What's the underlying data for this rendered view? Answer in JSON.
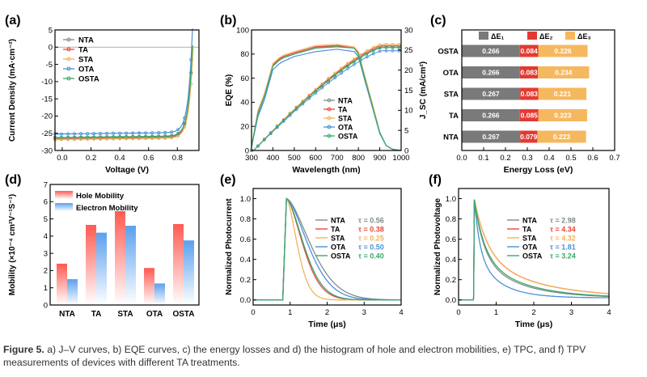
{
  "colors": {
    "NTA": "#7f8c8d",
    "TA": "#e8473b",
    "STA": "#f2b35c",
    "OTA": "#4a90d9",
    "OSTA": "#3aa76d",
    "dE1": "#7a7a7a",
    "dE2": "#e23b33",
    "dE3": "#f5b85f",
    "hole": "#ff5a52",
    "electron": "#5aa0ee"
  },
  "caption": {
    "label": "Figure 5.",
    "text": "a) J–V curves, b) EQE curves, c) the energy losses and d) the histogram of hole and electron mobilities, e) TPC, and f) TPV measurements of devices with different TA treatments."
  },
  "panels": {
    "a": {
      "label": "(a)"
    },
    "b": {
      "label": "(b)"
    },
    "c": {
      "label": "(c)"
    },
    "d": {
      "label": "(d)"
    },
    "e": {
      "label": "(e)"
    },
    "f": {
      "label": "(f)"
    }
  },
  "chart_data": [
    {
      "id": "a",
      "type": "line",
      "title": "",
      "xlabel": "Voltage (V)",
      "ylabel": "Current Density (mA·cm⁻²)",
      "xlim": [
        -0.05,
        0.95
      ],
      "ylim": [
        -30,
        5
      ],
      "xticks": [
        "0.0",
        "0.2",
        "0.4",
        "0.6",
        "0.8"
      ],
      "xtickvals": [
        0,
        0.2,
        0.4,
        0.6,
        0.8
      ],
      "yticks": [
        "5",
        "0",
        "-5",
        "-10",
        "-15",
        "-20",
        "-25",
        "-30"
      ],
      "ytickvals": [
        5,
        0,
        -5,
        -10,
        -15,
        -20,
        -25,
        -30
      ],
      "legend": [
        "NTA",
        "TA",
        "STA",
        "OTA",
        "OSTA"
      ],
      "series": [
        {
          "name": "NTA",
          "jsc": -26.3,
          "voc": 0.905
        },
        {
          "name": "TA",
          "jsc": -26.6,
          "voc": 0.905
        },
        {
          "name": "STA",
          "jsc": -26.8,
          "voc": 0.91
        },
        {
          "name": "OTA",
          "jsc": -25.2,
          "voc": 0.9
        },
        {
          "name": "OSTA",
          "jsc": -26.2,
          "voc": 0.905
        }
      ]
    },
    {
      "id": "b",
      "type": "line",
      "xlabel": "Wavelength (nm)",
      "ylabel": "EQE (%)",
      "ylabel2": "J_SC (mA/cm²)",
      "xlim": [
        300,
        1000
      ],
      "ylim": [
        0,
        100
      ],
      "y2lim": [
        0,
        30
      ],
      "xticks": [
        "300",
        "400",
        "500",
        "600",
        "700",
        "800",
        "900",
        "1000"
      ],
      "xtickvals": [
        300,
        400,
        500,
        600,
        700,
        800,
        900,
        1000
      ],
      "yticks": [
        "0",
        "20",
        "40",
        "60",
        "80",
        "100"
      ],
      "ytickvals": [
        0,
        20,
        40,
        60,
        80,
        100
      ],
      "y2ticks": [
        "0",
        "5",
        "10",
        "15",
        "20",
        "25",
        "30"
      ],
      "y2tickvals": [
        0,
        5,
        10,
        15,
        20,
        25,
        30
      ],
      "legend": [
        "NTA",
        "TA",
        "STA",
        "OTA",
        "OSTA"
      ],
      "eqe_wavelengths": [
        300,
        330,
        360,
        400,
        430,
        450,
        500,
        600,
        700,
        780,
        800,
        830,
        870,
        900,
        930,
        960,
        1000
      ],
      "series": [
        {
          "name": "NTA",
          "eqe": [
            3,
            30,
            45,
            70,
            75,
            77,
            80,
            85,
            87,
            85,
            80,
            60,
            35,
            15,
            4,
            1,
            0
          ],
          "jsc_final": 25.8
        },
        {
          "name": "TA",
          "eqe": [
            3,
            32,
            46,
            71,
            76,
            78,
            81,
            86,
            87,
            85,
            81,
            61,
            35,
            15,
            4,
            1,
            0
          ],
          "jsc_final": 26.1
        },
        {
          "name": "STA",
          "eqe": [
            3,
            33,
            47,
            72,
            77,
            79,
            82,
            87,
            88,
            86,
            82,
            62,
            36,
            15,
            4,
            1,
            0
          ],
          "jsc_final": 26.4
        },
        {
          "name": "OTA",
          "eqe": [
            3,
            28,
            42,
            67,
            72,
            74,
            78,
            82,
            84,
            82,
            78,
            58,
            33,
            14,
            4,
            1,
            0
          ],
          "jsc_final": 24.8
        },
        {
          "name": "OSTA",
          "eqe": [
            3,
            31,
            45,
            70,
            75,
            77,
            80,
            85,
            86,
            85,
            80,
            60,
            34,
            15,
            4,
            1,
            0
          ],
          "jsc_final": 25.6
        }
      ]
    },
    {
      "id": "c",
      "type": "bar",
      "orientation": "horizontal",
      "stacked": true,
      "xlabel": "Energy Loss (eV)",
      "xlim": [
        0,
        0.7
      ],
      "xticks": [
        "0.0",
        "0.1",
        "0.2",
        "0.3",
        "0.4",
        "0.5",
        "0.6",
        "0.7"
      ],
      "xtickvals": [
        0,
        0.1,
        0.2,
        0.3,
        0.4,
        0.5,
        0.6,
        0.7
      ],
      "categories": [
        "OSTA",
        "OTA",
        "STA",
        "TA",
        "NTA"
      ],
      "legend": [
        "ΔE₁",
        "ΔE₂",
        "ΔE₃"
      ],
      "series": [
        {
          "name": "ΔE₁",
          "values": [
            0.266,
            0.266,
            0.267,
            0.266,
            0.267
          ],
          "labels": [
            "0.266",
            "0.266",
            "0.267",
            "0.266",
            "0.267"
          ]
        },
        {
          "name": "ΔE₂",
          "values": [
            0.084,
            0.083,
            0.083,
            0.085,
            0.079
          ],
          "labels": [
            "0.084",
            "0.083",
            "0.083",
            "0.085",
            "0.079"
          ]
        },
        {
          "name": "ΔE₃",
          "values": [
            0.226,
            0.234,
            0.221,
            0.223,
            0.223
          ],
          "labels": [
            "0.226",
            "0.234",
            "0.221",
            "0.223",
            "0.223"
          ]
        }
      ]
    },
    {
      "id": "d",
      "type": "bar",
      "ylabel": "Mobility (×10⁻⁴ cm²V⁻¹S⁻¹)",
      "ylim": [
        0,
        7
      ],
      "yticks": [
        "0",
        "1",
        "2",
        "3",
        "4",
        "5",
        "6",
        "7"
      ],
      "ytickvals": [
        0,
        1,
        2,
        3,
        4,
        5,
        6,
        7
      ],
      "categories": [
        "NTA",
        "TA",
        "STA",
        "OTA",
        "OSTA"
      ],
      "legend": [
        "Hole Mobility",
        "Electron Mobility"
      ],
      "series": [
        {
          "name": "Hole Mobility",
          "values": [
            2.4,
            4.65,
            5.45,
            2.15,
            4.7
          ]
        },
        {
          "name": "Electron Mobility",
          "values": [
            1.5,
            4.2,
            4.6,
            1.25,
            3.75
          ]
        }
      ]
    },
    {
      "id": "e",
      "type": "line",
      "xlabel": "Time (μs)",
      "ylabel": "Normalized Photocurrent",
      "xlim": [
        0,
        4
      ],
      "ylim": [
        -0.05,
        1.1
      ],
      "xticks": [
        "0",
        "1",
        "2",
        "3",
        "4"
      ],
      "xtickvals": [
        0,
        1,
        2,
        3,
        4
      ],
      "yticks": [
        "0.0",
        "0.2",
        "0.4",
        "0.6",
        "0.8",
        "1.0"
      ],
      "ytickvals": [
        0,
        0.2,
        0.4,
        0.6,
        0.8,
        1.0
      ],
      "onset": 0.8,
      "peak": 0.9,
      "series": [
        {
          "name": "NTA",
          "tau": 0.56,
          "label": "τ = 0.56"
        },
        {
          "name": "TA",
          "tau": 0.38,
          "label": "τ = 0.38"
        },
        {
          "name": "STA",
          "tau": 0.25,
          "label": "τ = 0.25"
        },
        {
          "name": "OTA",
          "tau": 0.5,
          "label": "τ = 0.50"
        },
        {
          "name": "OSTA",
          "tau": 0.4,
          "label": "τ = 0.40"
        }
      ]
    },
    {
      "id": "f",
      "type": "line",
      "xlabel": "Time (μs)",
      "ylabel": "Normalized Photovoltage",
      "xlim": [
        0,
        4
      ],
      "ylim": [
        -0.05,
        1.1
      ],
      "xticks": [
        "0",
        "1",
        "2",
        "3",
        "4"
      ],
      "xtickvals": [
        0,
        1,
        2,
        3,
        4
      ],
      "yticks": [
        "0.0",
        "0.2",
        "0.4",
        "0.6",
        "0.8",
        "1.0"
      ],
      "ytickvals": [
        0,
        0.2,
        0.4,
        0.6,
        0.8,
        1.0
      ],
      "onset": 0.4,
      "series": [
        {
          "name": "NTA",
          "tau": 2.98,
          "label": "τ = 2.98"
        },
        {
          "name": "TA",
          "tau": 4.34,
          "label": "τ = 4.34"
        },
        {
          "name": "STA",
          "tau": 4.32,
          "label": "τ = 4.32"
        },
        {
          "name": "OTA",
          "tau": 1.81,
          "label": "τ = 1.81"
        },
        {
          "name": "OSTA",
          "tau": 3.24,
          "label": "τ = 3.24"
        }
      ]
    }
  ]
}
